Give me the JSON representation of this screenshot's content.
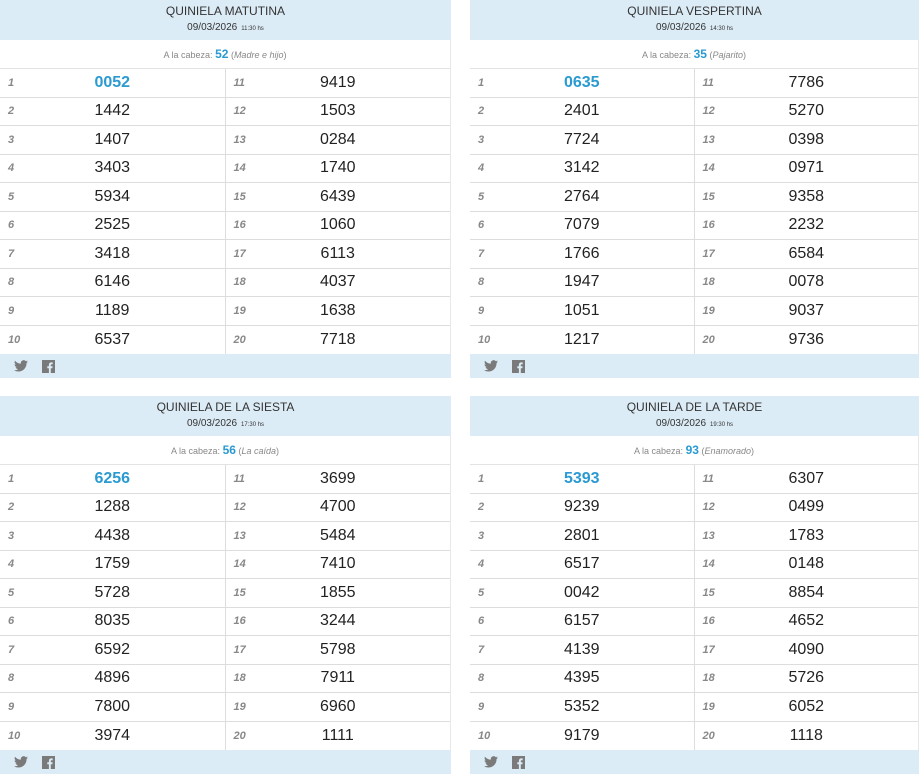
{
  "panels": [
    {
      "title": "QUINIELA MATUTINA",
      "date": "09/03/2026",
      "time": "11:30 hs",
      "cabeza_label": "A la cabeza:",
      "cabeza_num": "52",
      "cabeza_name": "Madre e hijo",
      "numbers": [
        "0052",
        "1442",
        "1407",
        "3403",
        "5934",
        "2525",
        "3418",
        "6146",
        "1189",
        "6537",
        "9419",
        "1503",
        "0284",
        "1740",
        "6439",
        "1060",
        "6113",
        "4037",
        "1638",
        "7718"
      ]
    },
    {
      "title": "QUINIELA VESPERTINA",
      "date": "09/03/2026",
      "time": "14:30 hs",
      "cabeza_label": "A la cabeza:",
      "cabeza_num": "35",
      "cabeza_name": "Pajarito",
      "numbers": [
        "0635",
        "2401",
        "7724",
        "3142",
        "2764",
        "7079",
        "1766",
        "1947",
        "1051",
        "1217",
        "7786",
        "5270",
        "0398",
        "0971",
        "9358",
        "2232",
        "6584",
        "0078",
        "9037",
        "9736"
      ]
    },
    {
      "title": "QUINIELA DE LA SIESTA",
      "date": "09/03/2026",
      "time": "17:30 hs",
      "cabeza_label": "A la cabeza:",
      "cabeza_num": "56",
      "cabeza_name": "La caída",
      "numbers": [
        "6256",
        "1288",
        "4438",
        "1759",
        "5728",
        "8035",
        "6592",
        "4896",
        "7800",
        "3974",
        "3699",
        "4700",
        "5484",
        "7410",
        "1855",
        "3244",
        "5798",
        "7911",
        "6960",
        "1111"
      ]
    },
    {
      "title": "QUINIELA DE LA TARDE",
      "date": "09/03/2026",
      "time": "19:30 hs",
      "cabeza_label": "A la cabeza:",
      "cabeza_num": "93",
      "cabeza_name": "Enamorado",
      "numbers": [
        "5393",
        "9239",
        "2801",
        "6517",
        "0042",
        "6157",
        "4139",
        "4395",
        "5352",
        "9179",
        "6307",
        "0499",
        "1783",
        "0148",
        "8854",
        "4652",
        "4090",
        "5726",
        "6052",
        "1118"
      ]
    }
  ],
  "positions": [
    "1",
    "2",
    "3",
    "4",
    "5",
    "6",
    "7",
    "8",
    "9",
    "10",
    "11",
    "12",
    "13",
    "14",
    "15",
    "16",
    "17",
    "18",
    "19",
    "20"
  ],
  "share_icons": [
    "twitter-icon",
    "facebook-icon"
  ],
  "colors": {
    "header_bg": "#dcecf6",
    "accent": "#2a9ad1"
  }
}
